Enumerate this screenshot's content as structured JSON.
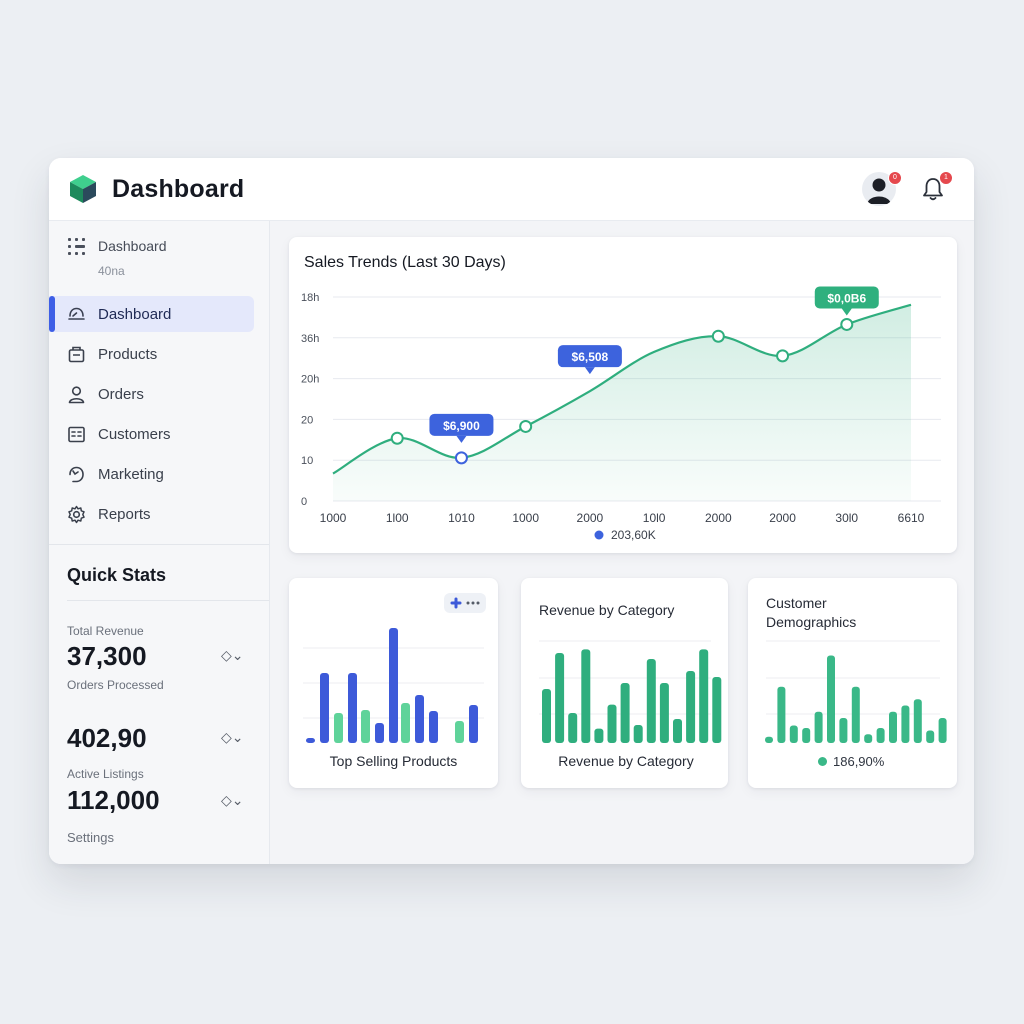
{
  "header": {
    "app_title": "Dashboard",
    "logo_icon": "cube-logo-icon",
    "avatar_badge": "0",
    "bell_badge": "1"
  },
  "sidebar": {
    "head_label": "Dashboard",
    "head_sub": "40na",
    "items": [
      {
        "label": "Dashboard",
        "icon": "dashboard-icon",
        "active": true
      },
      {
        "label": "Products",
        "icon": "box-icon",
        "active": false
      },
      {
        "label": "Orders",
        "icon": "user-icon",
        "active": false
      },
      {
        "label": "Customers",
        "icon": "contacts-icon",
        "active": false
      },
      {
        "label": "Marketing",
        "icon": "megaphone-icon",
        "active": false
      },
      {
        "label": "Reports",
        "icon": "gear-icon",
        "active": false
      }
    ]
  },
  "quick_stats": {
    "title": "Quick Stats",
    "total_revenue_label": "Total Revenue",
    "total_revenue_value": "37,300",
    "orders_label": "Orders Processed",
    "orders_value": "402,90",
    "listings_label": "Active Listings",
    "listings_value": "112,000",
    "settings_label": "Settings",
    "control_glyph": "◇⌄"
  },
  "sales_trends": {
    "title": "Sales Trends (Last 30 Days)",
    "y_ticks": [
      "18h",
      "36h",
      "20h",
      "20",
      "10",
      "0"
    ],
    "x_ticks": [
      "1000",
      "1l00",
      "1010",
      "1000",
      "2000",
      "10l0",
      "2000",
      "2000",
      "30l0",
      "6610"
    ],
    "callouts": [
      "$6,900",
      "$6,508",
      "$0,0B6"
    ],
    "legend_label": "203,60K",
    "colors": {
      "line": "#2fae7e",
      "callout_blue": "#3d63dd",
      "callout_green": "#2fb07e"
    }
  },
  "top_selling": {
    "caption": "Top Selling Products",
    "menu_icon": "plus-more-icon"
  },
  "revenue_category": {
    "title": "Revenue by Category",
    "caption": "Revenue by Category"
  },
  "demographics": {
    "title_line1": "Customer",
    "title_line2": "Demographics",
    "legend_label": "186,90%"
  },
  "chart_data": [
    {
      "type": "area",
      "title": "Sales Trends (Last 30 Days)",
      "x": [
        "1000",
        "1l00",
        "1010",
        "1000",
        "2000",
        "10l0",
        "2000",
        "2000",
        "30l0",
        "6610"
      ],
      "y_tick_labels": [
        "18h",
        "36h",
        "20h",
        "20",
        "10",
        "0"
      ],
      "series": [
        {
          "name": "203,60K",
          "values": [
            7,
            16,
            11,
            19,
            28,
            38,
            42,
            37,
            45,
            50
          ]
        }
      ],
      "ylim": [
        0,
        52
      ],
      "grid": true,
      "legend": "bottom-center",
      "marker_points": [
        1,
        2,
        3,
        6,
        7,
        8
      ]
    },
    {
      "type": "bar",
      "caption": "Top Selling Products",
      "series": [
        {
          "color": "#3d5ad9",
          "values": [
            5,
            70,
            70,
            20,
            115,
            48,
            32,
            38
          ]
        },
        {
          "color": "#5fd39a",
          "values": [
            30,
            33,
            40,
            22
          ]
        }
      ]
    },
    {
      "type": "bar",
      "title": "Revenue by Category",
      "values": [
        45,
        75,
        25,
        78,
        12,
        32,
        50,
        15,
        70,
        50,
        20,
        60,
        78,
        55
      ],
      "color": "#2fae7e"
    },
    {
      "type": "bar",
      "title": "Customer Demographics",
      "legend": "186,90%",
      "values": [
        5,
        45,
        14,
        12,
        25,
        70,
        20,
        45,
        7,
        12,
        25,
        30,
        35,
        10,
        20
      ],
      "color": "#3ab888"
    }
  ]
}
